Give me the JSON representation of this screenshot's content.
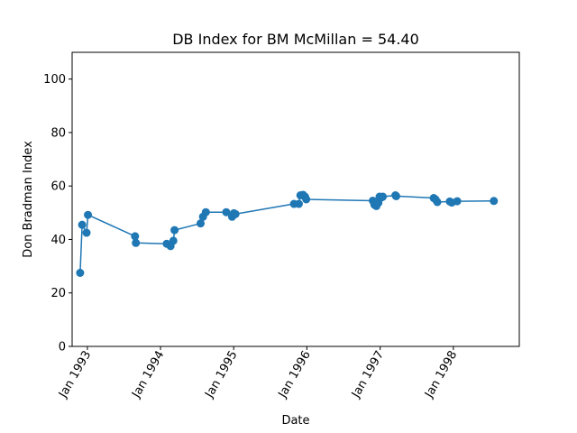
{
  "chart_data": {
    "type": "line",
    "title": "DB Index for BM McMillan = 54.40",
    "xlabel": "Date",
    "ylabel": "Don Bradman Index",
    "ylim": [
      0,
      110
    ],
    "xlim": [
      "1992-10-17",
      "1998-11-26"
    ],
    "yticks": [
      0,
      20,
      40,
      60,
      80,
      100
    ],
    "xticks": [
      {
        "date": "1993-01-01",
        "label": "Jan 1993"
      },
      {
        "date": "1994-01-01",
        "label": "Jan 1994"
      },
      {
        "date": "1995-01-01",
        "label": "Jan 1995"
      },
      {
        "date": "1996-01-01",
        "label": "Jan 1996"
      },
      {
        "date": "1997-01-01",
        "label": "Jan 1997"
      },
      {
        "date": "1998-01-01",
        "label": "Jan 1998"
      }
    ],
    "grid": false,
    "legend": "none",
    "color": "#1f77b4",
    "series": [
      {
        "x": [
          "1992-11-26",
          "1992-12-06",
          "1992-12-28",
          "1993-01-04",
          "1993-08-27",
          "1993-08-31",
          "1994-02-01",
          "1994-02-20",
          "1994-03-06",
          "1994-03-12",
          "1994-07-20",
          "1994-08-01",
          "1994-08-15",
          "1994-11-25",
          "1994-12-24",
          "1995-01-02",
          "1995-01-10",
          "1995-10-29",
          "1995-11-22",
          "1995-11-30",
          "1995-12-13",
          "1995-12-23",
          "1995-12-29",
          "1996-11-25",
          "1996-12-03",
          "1996-12-13",
          "1996-12-23",
          "1996-12-29",
          "1997-01-07",
          "1997-01-14",
          "1997-03-18",
          "1997-03-22",
          "1997-09-25",
          "1997-10-04",
          "1997-10-13",
          "1997-12-14",
          "1997-12-24",
          "1998-01-20",
          "1998-07-22"
        ],
        "y": [
          27.5,
          45.5,
          42.5,
          49.2,
          41.2,
          38.7,
          38.4,
          37.5,
          39.5,
          43.5,
          46.0,
          48.5,
          50.2,
          50.2,
          48.5,
          49.8,
          49.5,
          53.3,
          53.3,
          56.5,
          56.7,
          56.0,
          55.0,
          54.5,
          53.0,
          52.5,
          53.7,
          56.0,
          55.7,
          56.0,
          56.5,
          56.2,
          55.5,
          55.0,
          54.0,
          54.2,
          53.8,
          54.3,
          54.4
        ]
      }
    ]
  }
}
